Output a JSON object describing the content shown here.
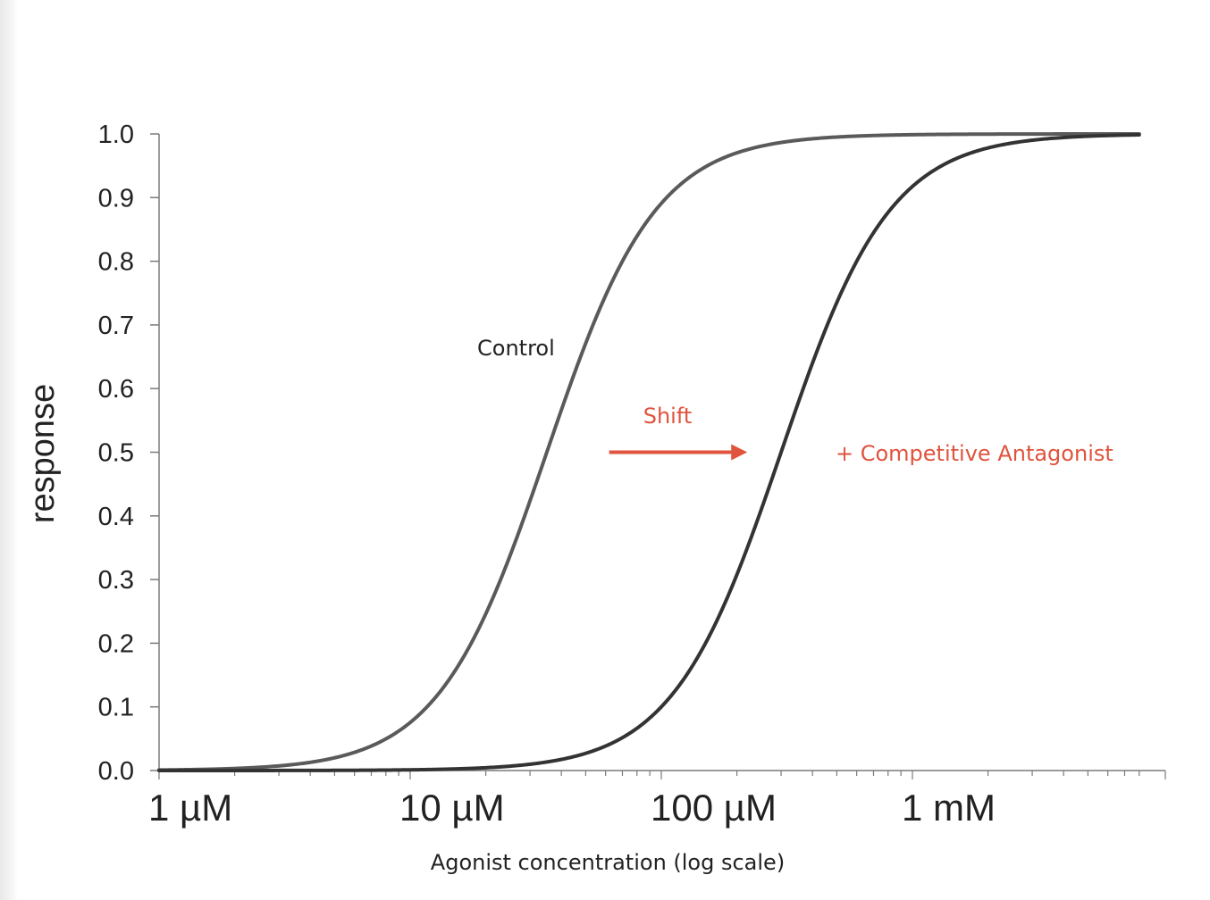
{
  "chart_data": {
    "type": "line",
    "xscale": "log",
    "xlim_M": [
      1e-06,
      0.008
    ],
    "ylim": [
      0,
      1.0
    ],
    "ylabel": "response",
    "xlabel": "Agonist concentration (log scale)",
    "yticks": [
      "0.0",
      "0.1",
      "0.2",
      "0.3",
      "0.4",
      "0.5",
      "0.6",
      "0.7",
      "0.8",
      "0.9",
      "1.0"
    ],
    "xtick_labels": [
      {
        "value_M": 1e-06,
        "label": "1 µM"
      },
      {
        "value_M": 1e-05,
        "label": "10 µM"
      },
      {
        "value_M": 0.0001,
        "label": "100 µM"
      },
      {
        "value_M": 0.001,
        "label": "1 mM"
      }
    ],
    "grid": false,
    "series": [
      {
        "name": "Control",
        "ec50_M": 3.5e-05,
        "hill": 2.0,
        "top": 1.0,
        "bottom": 0.0,
        "color": "#5a5a5a"
      },
      {
        "name": "+ Competitive Antagonist",
        "ec50_M": 0.0003,
        "hill": 2.0,
        "top": 1.0,
        "bottom": 0.0,
        "color": "#333333"
      }
    ],
    "annotations": [
      {
        "text": "Control",
        "color": "#222222"
      },
      {
        "text": "Shift",
        "color": "#e0533d"
      },
      {
        "text": "+ Competitive Antagonist",
        "color": "#e0533d"
      }
    ],
    "arrow": {
      "label": "Shift",
      "color": "#e0533d",
      "from_M": 6.2e-05,
      "to_M": 0.00022,
      "y": 0.5
    }
  }
}
